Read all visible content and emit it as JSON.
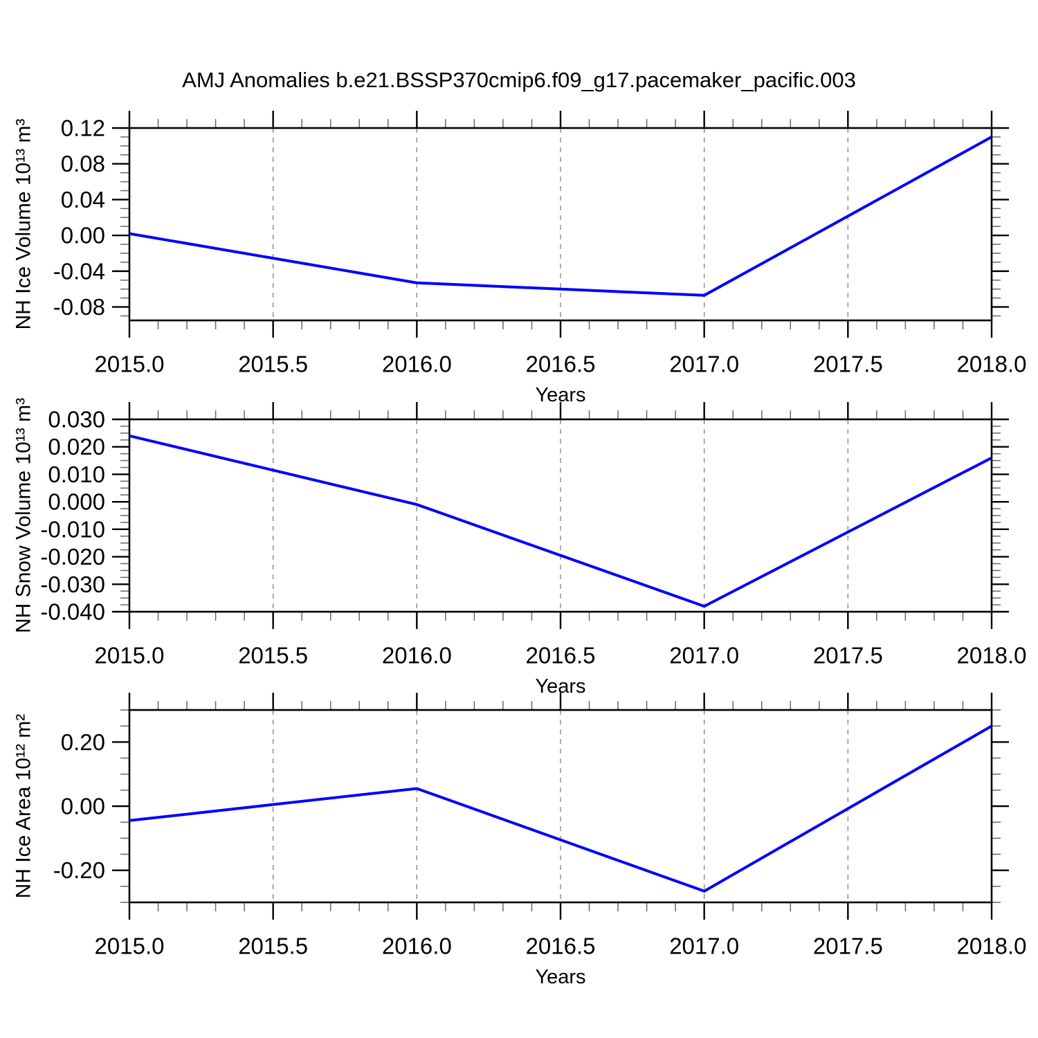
{
  "title": "AMJ Anomalies b.e21.BSSP370cmip6.f09_g17.pacemaker_pacific.003",
  "colors": {
    "line": "#0000ff",
    "axis": "#000000",
    "grid": "#808080",
    "minor_tick": "#666666"
  },
  "x_axis": {
    "label": "Years",
    "xlim": [
      2015.0,
      2018.0
    ],
    "major_ticks": [
      2015.0,
      2015.5,
      2016.0,
      2016.5,
      2017.0,
      2017.5,
      2018.0
    ],
    "tick_labels": [
      "2015.0",
      "2015.5",
      "2016.0",
      "2016.5",
      "2017.0",
      "2017.5",
      "2018.0"
    ],
    "minor_step": 0.1,
    "gridlines_at": [
      2015.5,
      2016.0,
      2016.5,
      2017.0,
      2017.5
    ]
  },
  "chart_data": [
    {
      "type": "line",
      "name": "nh-ice-volume",
      "ylabel": "NH Ice Volume 10¹³ m³",
      "xlabel": "Years",
      "x": [
        2015.0,
        2016.0,
        2017.0,
        2018.0
      ],
      "values": [
        0.002,
        -0.053,
        -0.067,
        0.11
      ],
      "ylim": [
        -0.095,
        0.12
      ],
      "y_major_ticks": [
        0.12,
        0.08,
        0.04,
        0.0,
        -0.04,
        -0.08
      ],
      "y_tick_labels": [
        "0.12",
        "0.08",
        "0.04",
        "0.00",
        "-0.04",
        "-0.08"
      ],
      "y_minor_step": 0.01,
      "grid": "vertical-dashed",
      "legend": "none"
    },
    {
      "type": "line",
      "name": "nh-snow-volume",
      "ylabel": "NH Snow Volume 10¹³ m³",
      "xlabel": "Years",
      "x": [
        2015.0,
        2016.0,
        2017.0,
        2018.0
      ],
      "values": [
        0.024,
        -0.001,
        -0.038,
        0.016
      ],
      "ylim": [
        -0.04,
        0.03
      ],
      "y_major_ticks": [
        0.03,
        0.02,
        0.01,
        0.0,
        -0.01,
        -0.02,
        -0.03,
        -0.04
      ],
      "y_tick_labels": [
        "0.030",
        "0.020",
        "0.010",
        "0.000",
        "-0.010",
        "-0.020",
        "-0.030",
        "-0.040"
      ],
      "y_minor_step": 0.0025,
      "grid": "vertical-dashed",
      "legend": "none"
    },
    {
      "type": "line",
      "name": "nh-ice-area",
      "ylabel": "NH Ice Area 10¹² m²",
      "xlabel": "Years",
      "x": [
        2015.0,
        2016.0,
        2017.0,
        2018.0
      ],
      "values": [
        -0.045,
        0.055,
        -0.265,
        0.25
      ],
      "ylim": [
        -0.3,
        0.3
      ],
      "y_major_ticks": [
        0.2,
        0.0,
        -0.2
      ],
      "y_tick_labels": [
        "0.20",
        "0.00",
        "-0.20"
      ],
      "y_minor_step": 0.05,
      "grid": "vertical-dashed",
      "legend": "none"
    }
  ]
}
